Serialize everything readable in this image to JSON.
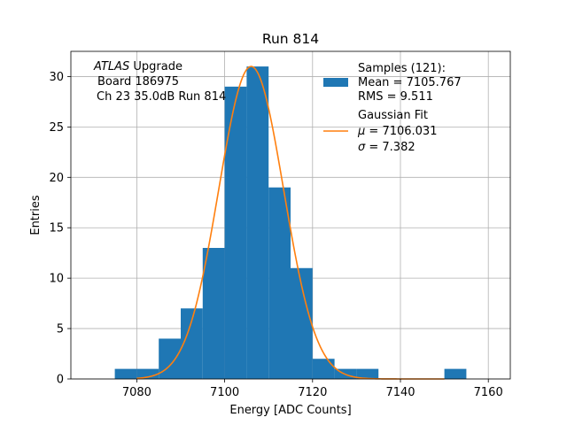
{
  "chart_data": {
    "type": "bar",
    "title": "Run 814",
    "xlabel": "Energy [ADC Counts]",
    "ylabel": "Entries",
    "xlim": [
      7065,
      7165
    ],
    "ylim": [
      0,
      32.5
    ],
    "grid": true,
    "x_ticks": [
      7080,
      7100,
      7120,
      7140,
      7160
    ],
    "y_ticks": [
      0,
      5,
      10,
      15,
      20,
      25,
      30
    ],
    "bin_width": 5,
    "bins": [
      {
        "left": 7075,
        "count": 1
      },
      {
        "left": 7080,
        "count": 1
      },
      {
        "left": 7085,
        "count": 4
      },
      {
        "left": 7090,
        "count": 7
      },
      {
        "left": 7095,
        "count": 13
      },
      {
        "left": 7100,
        "count": 29
      },
      {
        "left": 7105,
        "count": 31
      },
      {
        "left": 7110,
        "count": 19
      },
      {
        "left": 7115,
        "count": 11
      },
      {
        "left": 7120,
        "count": 2
      },
      {
        "left": 7125,
        "count": 1
      },
      {
        "left": 7130,
        "count": 1
      },
      {
        "left": 7150,
        "count": 1
      }
    ],
    "fit": {
      "mu": 7106.031,
      "sigma": 7.382,
      "peak": 31,
      "range": [
        7080,
        7150
      ]
    },
    "annotation": {
      "line1_italic": "ATLAS",
      "line1_rest": " Upgrade",
      "line2": "Board 186975",
      "line3": "Ch 23 35.0dB  Run 814"
    },
    "legend": {
      "placement": "top-right",
      "samples": {
        "line1": "Samples (121):",
        "line2": "Mean = 7105.767",
        "line3": "RMS = 9.511"
      },
      "fit": {
        "line1": "Gaussian Fit",
        "mu_symbol": "μ",
        "mu_text": " = 7106.031",
        "sigma_symbol": "σ",
        "sigma_text": " = 7.382"
      }
    },
    "colors": {
      "bars": "#1f77b4",
      "fit_line": "#ff7f0e",
      "grid": "#b0b0b0"
    }
  }
}
